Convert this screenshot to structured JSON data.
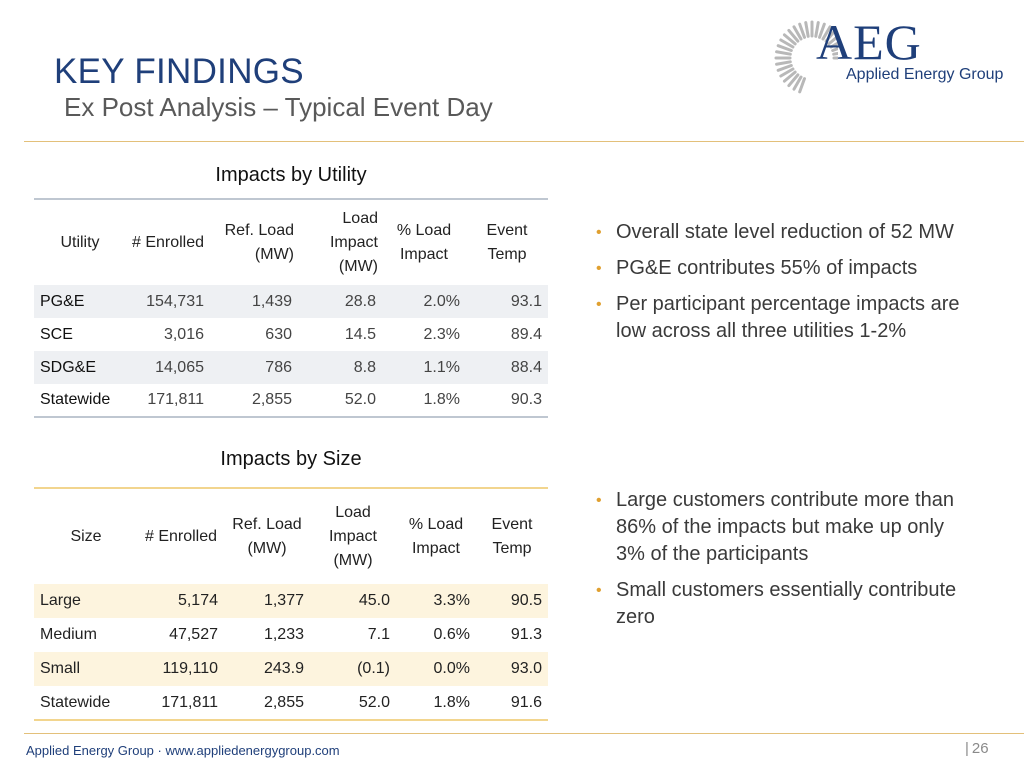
{
  "header": {
    "title": "KEY FINDINGS",
    "subtitle": "Ex Post Analysis – Typical Event Day"
  },
  "logo": {
    "mark": "AEG",
    "name": "Applied Energy Group"
  },
  "utility_section": {
    "title": "Impacts by Utility",
    "columns": [
      "Utility",
      "# Enrolled",
      "Ref. Load (MW)",
      "Load Impact (MW)",
      "% Load Impact",
      "Event Temp"
    ],
    "rows": [
      [
        "PG&E",
        "154,731",
        "1,439",
        "28.8",
        "2.0%",
        "93.1"
      ],
      [
        "SCE",
        "3,016",
        "630",
        "14.5",
        "2.3%",
        "89.4"
      ],
      [
        "SDG&E",
        "14,065",
        "786",
        "8.8",
        "1.1%",
        "88.4"
      ],
      [
        "Statewide",
        "171,811",
        "2,855",
        "52.0",
        "1.8%",
        "90.3"
      ]
    ]
  },
  "size_section": {
    "title": "Impacts by Size",
    "columns": [
      "Size",
      "# Enrolled",
      "Ref. Load (MW)",
      "Load Impact (MW)",
      "% Load Impact",
      "Event Temp"
    ],
    "rows": [
      [
        "Large",
        "5,174",
        "1,377",
        "45.0",
        "3.3%",
        "90.5"
      ],
      [
        "Medium",
        "47,527",
        "1,233",
        "7.1",
        "0.6%",
        "91.3"
      ],
      [
        "Small",
        "119,110",
        "243.9",
        "(0.1)",
        "0.0%",
        "93.0"
      ],
      [
        "Statewide",
        "171,811",
        "2,855",
        "52.0",
        "1.8%",
        "91.6"
      ]
    ]
  },
  "bullets_utility": [
    "Overall state level reduction of 52 MW",
    "PG&E contributes 55% of impacts",
    "Per participant percentage impacts are low across all three utilities 1-2%"
  ],
  "bullets_size": [
    "Large customers contribute more than 86% of the impacts but make up only 3% of the participants",
    "Small customers essentially contribute zero"
  ],
  "footer": {
    "text": "Applied Energy Group · www.appliedenergygroup.com",
    "page": "26"
  },
  "colors": {
    "brand_blue": "#1F3F7A",
    "gold_rule": "#E3C07A",
    "bullet_gold": "#E0A030",
    "utility_stripe": "#EEF0F3",
    "size_stripe": "#FDF4DE"
  },
  "icons": [
    "logo-gear-icon",
    "bullet-dot-icon"
  ]
}
